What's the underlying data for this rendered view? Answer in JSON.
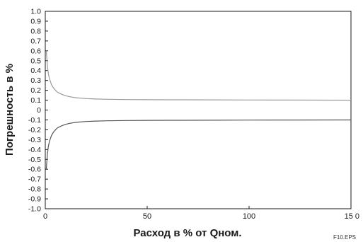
{
  "chart_data": {
    "type": "line",
    "xlabel": "Расход в % от Qном.",
    "ylabel": "Погрешность в %",
    "xlim": [
      0,
      150
    ],
    "ylim": [
      -1.0,
      1.0
    ],
    "x_ticks": [
      {
        "value": 0,
        "label": "0"
      },
      {
        "value": 50,
        "label": "50"
      },
      {
        "value": 100,
        "label": "100"
      },
      {
        "value": 150,
        "label": "15 0"
      }
    ],
    "y_ticks": [
      {
        "value": 1.0,
        "label": "1.0"
      },
      {
        "value": 0.9,
        "label": "0.9"
      },
      {
        "value": 0.8,
        "label": "0.8"
      },
      {
        "value": 0.7,
        "label": "0.7"
      },
      {
        "value": 0.6,
        "label": "0.6"
      },
      {
        "value": 0.5,
        "label": "0.5"
      },
      {
        "value": 0.4,
        "label": "0.4"
      },
      {
        "value": 0.3,
        "label": "0.3"
      },
      {
        "value": 0.2,
        "label": "0.2"
      },
      {
        "value": 0.1,
        "label": "0.1"
      },
      {
        "value": 0.0,
        "label": "0"
      },
      {
        "value": -0.1,
        "label": "-0.1"
      },
      {
        "value": -0.2,
        "label": "-0.2"
      },
      {
        "value": -0.3,
        "label": "-0.3"
      },
      {
        "value": -0.4,
        "label": "-0.4"
      },
      {
        "value": -0.5,
        "label": "-0.5"
      },
      {
        "value": -0.6,
        "label": "-0.6"
      },
      {
        "value": -0.7,
        "label": "-0.7"
      },
      {
        "value": -0.8,
        "label": "-0.8"
      },
      {
        "value": -0.9,
        "label": "-0.9"
      },
      {
        "value": -1.0,
        "label": "-1.0"
      }
    ],
    "grid": false,
    "series": [
      {
        "x": [
          0.5,
          1,
          1.5,
          2,
          3,
          4,
          5,
          6,
          8,
          10,
          12,
          15,
          20,
          25,
          30,
          40,
          50,
          60,
          80,
          100,
          120,
          150
        ],
        "values": [
          0.6,
          0.45,
          0.37,
          0.32,
          0.26,
          0.225,
          0.2,
          0.18,
          0.16,
          0.145,
          0.135,
          0.125,
          0.116,
          0.112,
          0.109,
          0.106,
          0.105,
          0.104,
          0.103,
          0.102,
          0.101,
          0.1
        ],
        "color": "#9a9a9a"
      },
      {
        "x": [
          0.5,
          1,
          1.5,
          2,
          3,
          4,
          5,
          6,
          8,
          10,
          12,
          15,
          20,
          25,
          30,
          40,
          50,
          60,
          80,
          100,
          120,
          150
        ],
        "values": [
          -0.6,
          -0.45,
          -0.37,
          -0.32,
          -0.26,
          -0.225,
          -0.2,
          -0.18,
          -0.16,
          -0.145,
          -0.135,
          -0.125,
          -0.116,
          -0.112,
          -0.109,
          -0.106,
          -0.105,
          -0.104,
          -0.103,
          -0.102,
          -0.101,
          -0.1
        ],
        "color": "#555555"
      }
    ]
  },
  "file_label": "F10.EPS"
}
